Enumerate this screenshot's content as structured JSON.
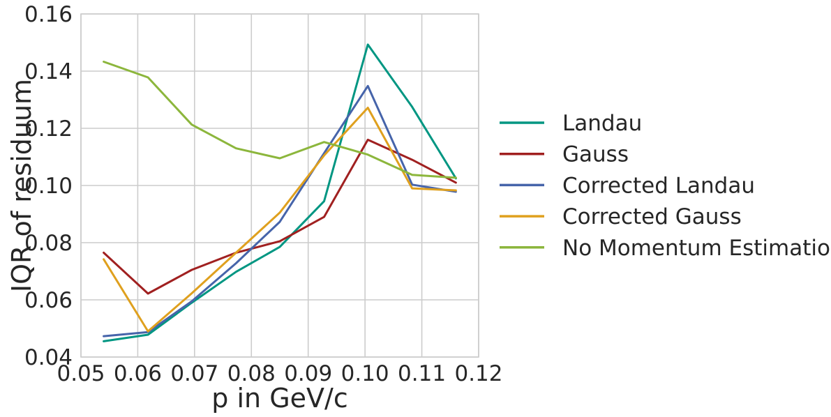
{
  "chart_data": {
    "type": "line",
    "title": "",
    "xlabel": "p in GeV/c",
    "ylabel": "IQR of residuum",
    "xlim": [
      0.05,
      0.12
    ],
    "ylim": [
      0.04,
      0.16
    ],
    "xticks": [
      "0.05",
      "0.06",
      "0.07",
      "0.08",
      "0.09",
      "0.10",
      "0.11",
      "0.12"
    ],
    "yticks": [
      "0.04",
      "0.06",
      "0.08",
      "0.10",
      "0.12",
      "0.14",
      "0.16"
    ],
    "grid": true,
    "legend_position": "right, outside plot",
    "x": [
      0.054,
      0.0618,
      0.0695,
      0.0773,
      0.085,
      0.0928,
      0.1005,
      0.1083,
      0.116
    ],
    "series": [
      {
        "name": "Landau",
        "color": "#009682",
        "values": [
          0.0455,
          0.0478,
          0.059,
          0.0698,
          0.0785,
          0.0945,
          0.1493,
          0.1275,
          0.1025
        ]
      },
      {
        "name": "Gauss",
        "color": "#a02020",
        "values": [
          0.0765,
          0.0622,
          0.0705,
          0.0765,
          0.0805,
          0.089,
          0.116,
          0.109,
          0.101
        ]
      },
      {
        "name": "Corrected Landau",
        "color": "#4664aa",
        "values": [
          0.0473,
          0.0487,
          0.0595,
          0.0728,
          0.0873,
          0.1113,
          0.1348,
          0.1003,
          0.0978
        ]
      },
      {
        "name": "Corrected Gauss",
        "color": "#dfa01e",
        "values": [
          0.0742,
          0.049,
          0.0623,
          0.0765,
          0.0905,
          0.1105,
          0.1272,
          0.099,
          0.0983
        ]
      },
      {
        "name": "No Momentum Estimation",
        "color": "#8cb63c",
        "values": [
          0.1433,
          0.1378,
          0.1213,
          0.113,
          0.1095,
          0.1152,
          0.1108,
          0.1037,
          0.1027
        ]
      }
    ]
  }
}
